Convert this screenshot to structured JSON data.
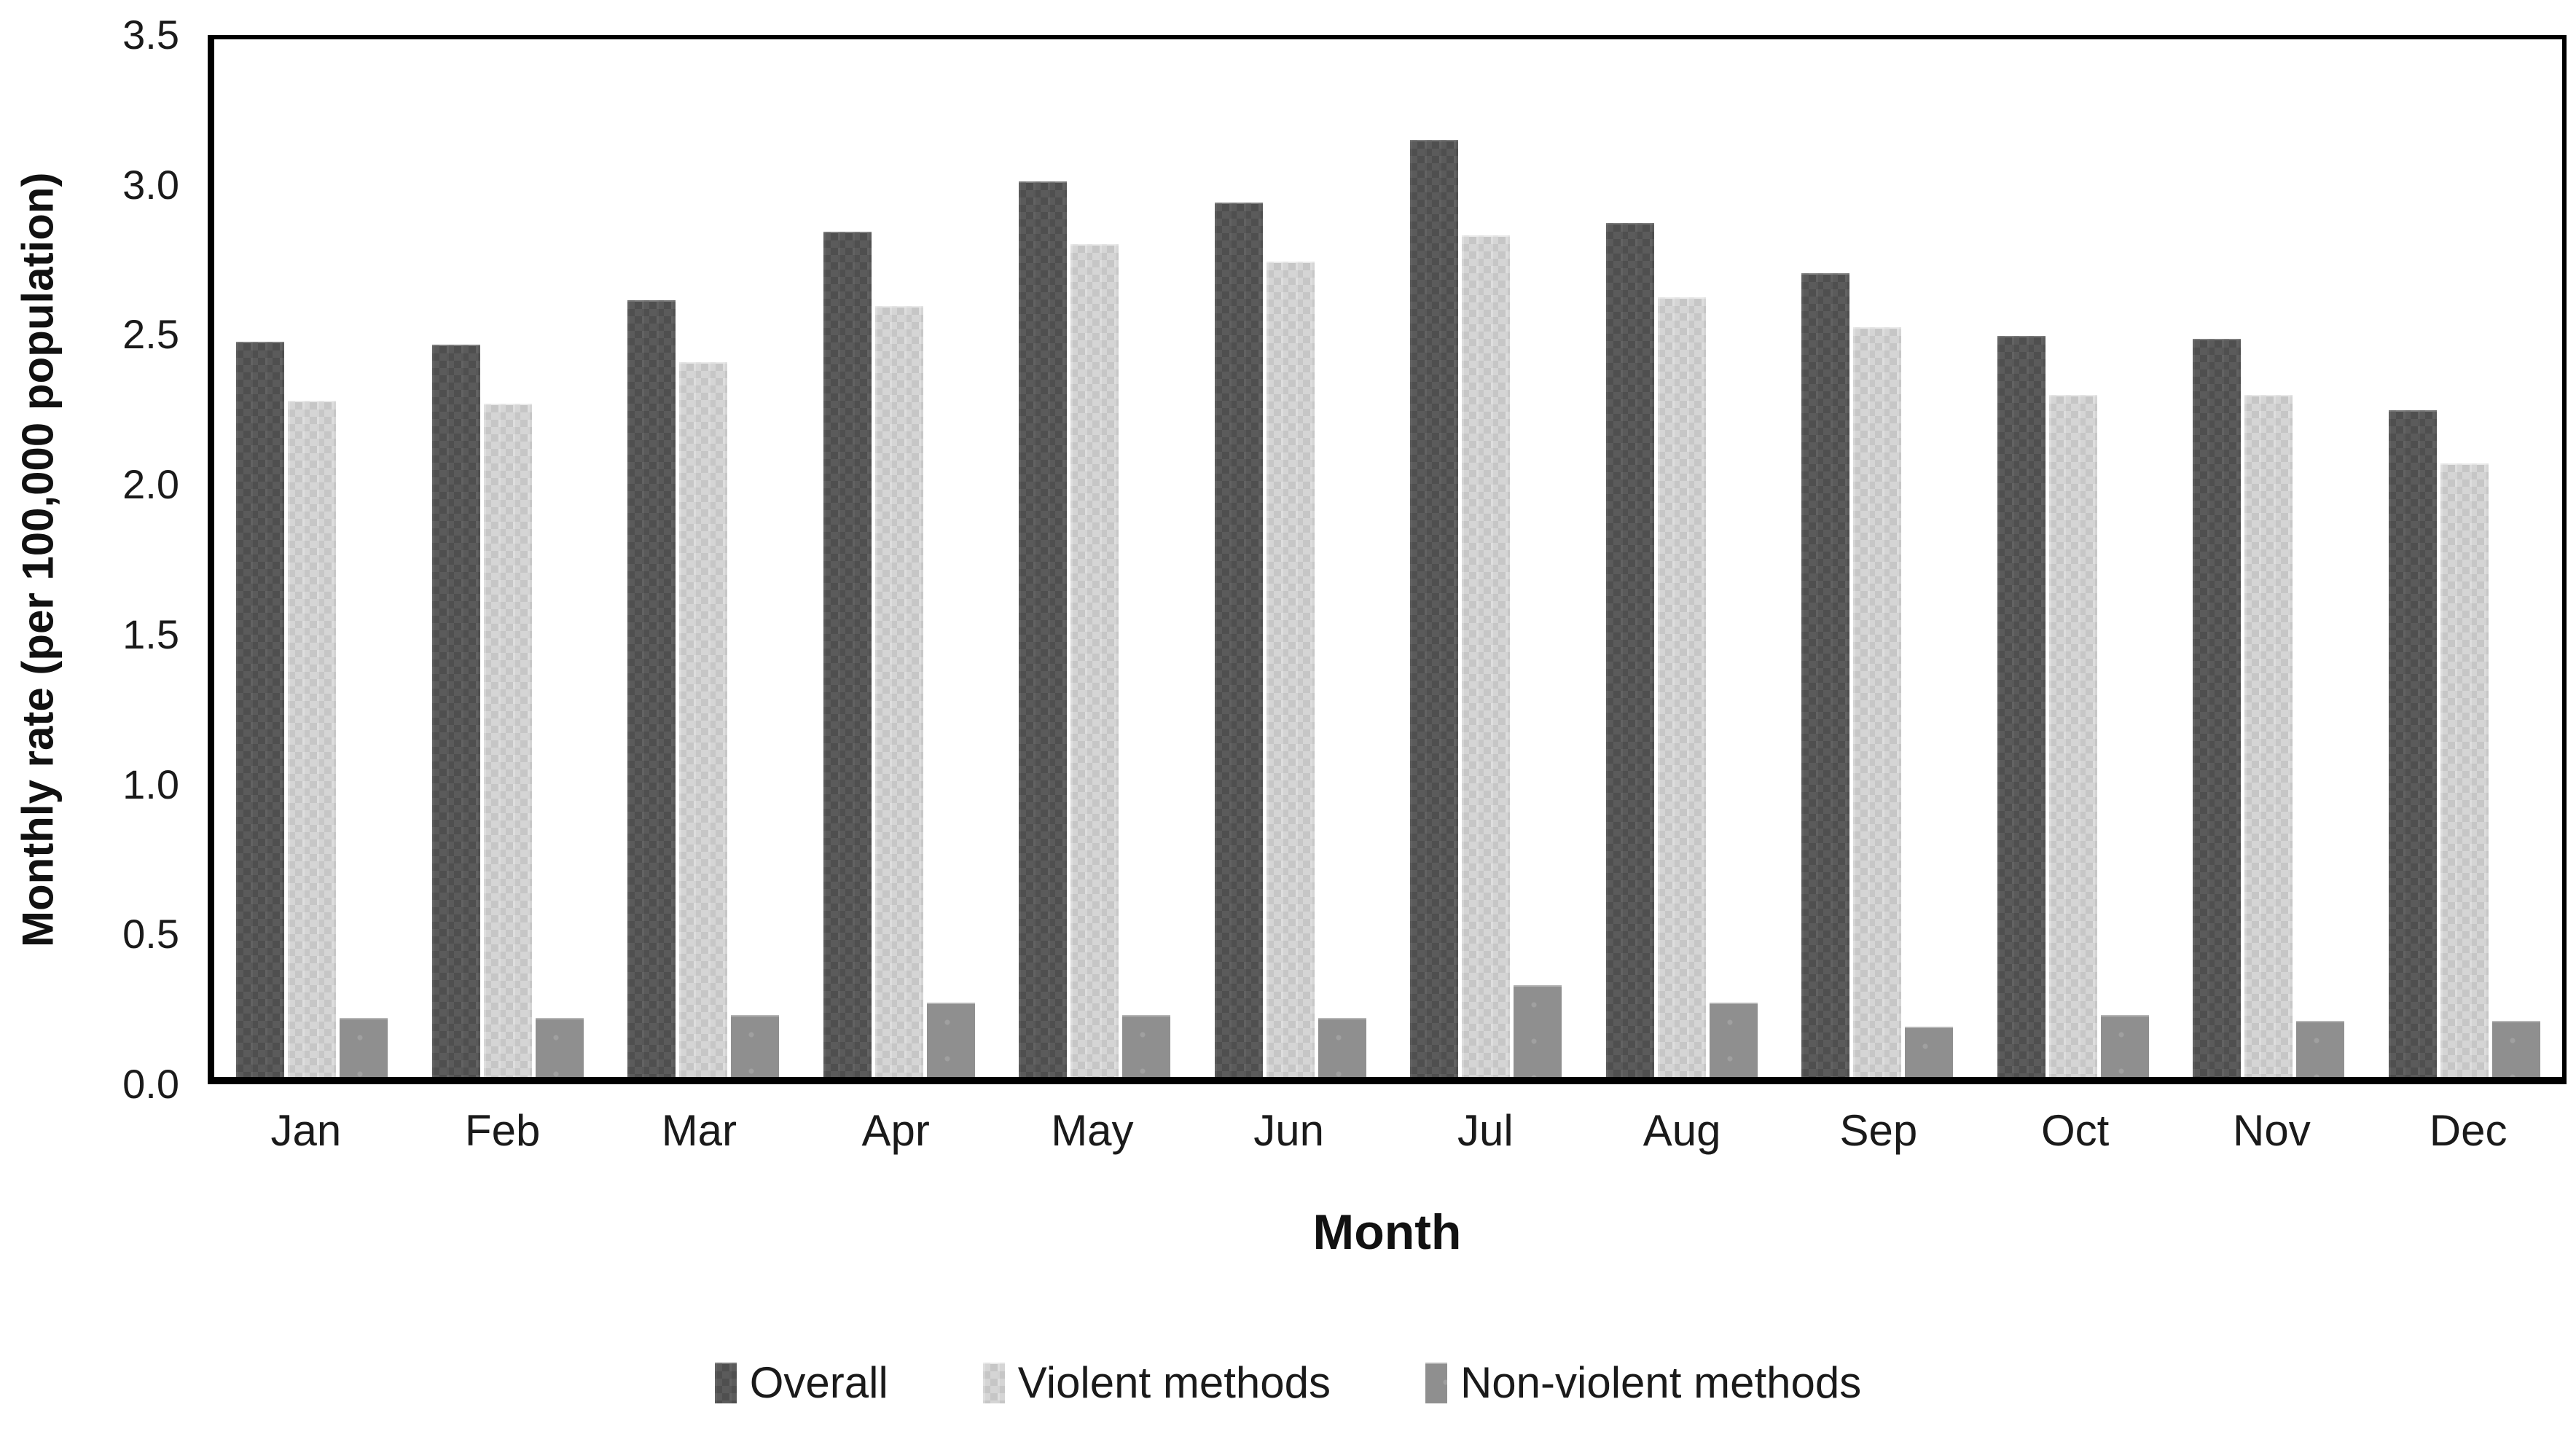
{
  "chart_data": {
    "type": "bar",
    "title": "",
    "categories": [
      "Jan",
      "Feb",
      "Mar",
      "Apr",
      "May",
      "Jun",
      "Jul",
      "Aug",
      "Sep",
      "Oct",
      "Nov",
      "Dec"
    ],
    "series": [
      {
        "name": "Overall",
        "color": "#555555",
        "values": [
          2.48,
          2.47,
          2.62,
          2.85,
          3.02,
          2.95,
          3.16,
          2.88,
          2.71,
          2.5,
          2.49,
          2.25
        ]
      },
      {
        "name": "Violent methods",
        "color": "#cdcdcd",
        "values": [
          2.28,
          2.27,
          2.41,
          2.6,
          2.81,
          2.75,
          2.84,
          2.63,
          2.53,
          2.3,
          2.3,
          2.07
        ]
      },
      {
        "name": "Non-violent methods",
        "color": "#8f8f8f",
        "values": [
          0.2,
          0.2,
          0.21,
          0.25,
          0.21,
          0.2,
          0.31,
          0.25,
          0.17,
          0.21,
          0.19,
          0.19
        ]
      }
    ],
    "xlabel": "Month",
    "ylabel": "Monthly rate (per 100,000 population)",
    "ylim": [
      0,
      3.5
    ],
    "y_ticks": [
      "0.0",
      "0.5",
      "1.0",
      "1.5",
      "2.0",
      "2.5",
      "3.0",
      "3.5"
    ],
    "grid": "off",
    "legend_position": "bottom",
    "axis_color": "#000000",
    "text_color": "#1a1a1a"
  }
}
